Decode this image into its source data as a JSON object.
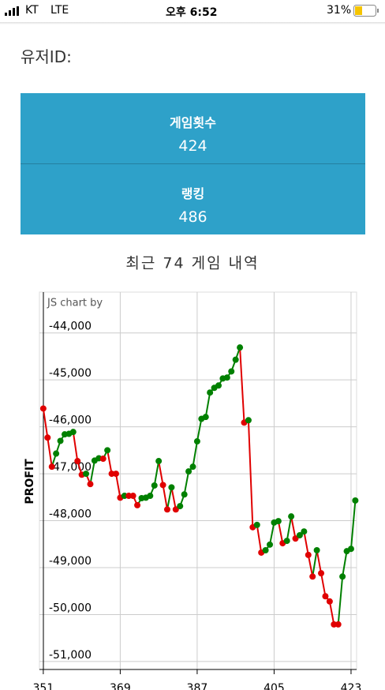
{
  "status_bar": {
    "carrier": "KT",
    "network": "LTE",
    "time": "오후 6:52",
    "battery": "31%"
  },
  "user_label": "유저ID:",
  "stats": [
    {
      "label": "게임횟수",
      "value": "424"
    },
    {
      "label": "랭킹",
      "value": "486"
    }
  ],
  "chart_data": {
    "type": "line",
    "title": "최근 74 게임 내역",
    "watermark": "JS chart by",
    "ylabel": "PROFIT",
    "up_color": "#008000",
    "down_color": "#e00000",
    "grid": true,
    "x": [
      351,
      352,
      353,
      354,
      355,
      356,
      357,
      358,
      359,
      360,
      361,
      362,
      363,
      364,
      365,
      366,
      367,
      368,
      369,
      370,
      371,
      372,
      373,
      374,
      375,
      376,
      377,
      378,
      379,
      380,
      381,
      382,
      383,
      384,
      385,
      386,
      387,
      388,
      389,
      390,
      391,
      392,
      393,
      394,
      395,
      396,
      397,
      398,
      399,
      400,
      401,
      402,
      403,
      404,
      405,
      406,
      407,
      408,
      409,
      410,
      411,
      412,
      413,
      414,
      415,
      416,
      417,
      418,
      419,
      420,
      421,
      422,
      423,
      424
    ],
    "series": [
      {
        "name": "PROFIT",
        "values": [
          -45610,
          -46230,
          -46850,
          -46570,
          -46300,
          -46160,
          -46150,
          -46110,
          -46730,
          -47020,
          -47000,
          -47220,
          -46720,
          -46670,
          -46680,
          -46500,
          -47000,
          -47000,
          -47510,
          -47470,
          -47470,
          -47470,
          -47670,
          -47520,
          -47510,
          -47470,
          -47250,
          -46730,
          -47240,
          -47760,
          -47290,
          -47760,
          -47690,
          -47440,
          -46950,
          -46850,
          -46310,
          -45830,
          -45790,
          -45270,
          -45170,
          -45120,
          -44970,
          -44950,
          -44820,
          -44570,
          -44310,
          -45910,
          -45860,
          -48140,
          -48090,
          -48680,
          -48630,
          -48510,
          -48040,
          -48010,
          -48480,
          -48430,
          -47910,
          -48380,
          -48310,
          -48230,
          -48730,
          -49190,
          -48630,
          -49120,
          -49610,
          -49720,
          -50210,
          -50210,
          -49190,
          -48650,
          -48600,
          -47570
        ]
      }
    ],
    "xlim": [
      350.1,
      424.3
    ],
    "ylim": [
      -51170,
      -43130
    ],
    "xticks": [
      351,
      369,
      387,
      405,
      423
    ],
    "yticks": [
      {
        "value": -51000,
        "label": "-51,000"
      },
      {
        "value": -50000,
        "label": "-50,000"
      },
      {
        "value": -49000,
        "label": "-49,000"
      },
      {
        "value": -48000,
        "label": "-48,000"
      },
      {
        "value": -47000,
        "label": "-47,000"
      },
      {
        "value": -46000,
        "label": "-46,000"
      },
      {
        "value": -45000,
        "label": "-45,000"
      },
      {
        "value": -44000,
        "label": "-44,000"
      }
    ]
  }
}
